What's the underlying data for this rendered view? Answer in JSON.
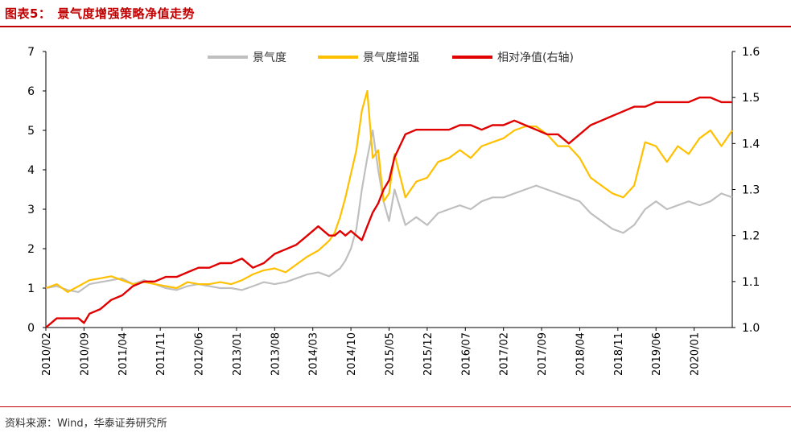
{
  "header": {
    "title": "图表5：　景气度增强策略净值走势"
  },
  "footer": {
    "source": "资料来源：Wind，华泰证券研究所"
  },
  "colors": {
    "accent": "#C00000",
    "series_gray": "#BFBFBF",
    "series_gold": "#FFC000",
    "series_red": "#E00000"
  },
  "chart_data": {
    "type": "line",
    "title": "景气度增强策略净值走势",
    "x_ticks": [
      "2010/02",
      "2010/09",
      "2011/04",
      "2011/11",
      "2012/06",
      "2013/01",
      "2013/08",
      "2014/03",
      "2014/10",
      "2015/05",
      "2015/12",
      "2016/07",
      "2017/02",
      "2017/09",
      "2018/04",
      "2018/11",
      "2019/06",
      "2020/01"
    ],
    "x_range": [
      "2010/02",
      "2020/06"
    ],
    "y_left": {
      "range": [
        0,
        7
      ],
      "ticks": [
        0,
        1,
        2,
        3,
        4,
        5,
        6,
        7
      ]
    },
    "y_right": {
      "range": [
        1.0,
        1.6
      ],
      "ticks": [
        "1.0",
        "1.1",
        "1.2",
        "1.3",
        "1.4",
        "1.5",
        "1.6"
      ]
    },
    "grid": false,
    "legend_position": "top",
    "series": [
      {
        "name": "景气度",
        "axis": "left",
        "color": "#BFBFBF",
        "x": [
          0,
          2,
          4,
          6,
          8,
          10,
          12,
          14,
          16,
          18,
          20,
          22,
          24,
          26,
          28,
          30,
          32,
          34,
          36,
          38,
          40,
          42,
          44,
          46,
          48,
          50,
          52,
          53,
          54,
          55,
          56,
          57,
          58,
          59,
          60,
          61,
          62,
          63,
          64,
          66,
          68,
          70,
          72,
          74,
          76,
          78,
          80,
          82,
          84,
          86,
          88,
          90,
          92,
          94,
          96,
          98,
          100,
          102,
          104,
          106,
          108,
          110,
          112,
          114,
          116,
          118,
          120,
          122,
          124,
          126
        ],
        "values": [
          1.0,
          1.05,
          0.95,
          0.9,
          1.1,
          1.15,
          1.2,
          1.25,
          1.1,
          1.2,
          1.1,
          1.0,
          0.95,
          1.05,
          1.1,
          1.05,
          1.0,
          1.0,
          0.95,
          1.05,
          1.15,
          1.1,
          1.15,
          1.25,
          1.35,
          1.4,
          1.3,
          1.4,
          1.5,
          1.7,
          2.0,
          2.5,
          3.5,
          4.3,
          5.0,
          4.0,
          3.2,
          2.7,
          3.5,
          2.6,
          2.8,
          2.6,
          2.9,
          3.0,
          3.1,
          3.0,
          3.2,
          3.3,
          3.3,
          3.4,
          3.5,
          3.6,
          3.5,
          3.4,
          3.3,
          3.2,
          2.9,
          2.7,
          2.5,
          2.4,
          2.6,
          3.0,
          3.2,
          3.0,
          3.1,
          3.2,
          3.1,
          3.2,
          3.4,
          3.3
        ]
      },
      {
        "name": "景气度增强",
        "axis": "left",
        "color": "#FFC000",
        "x": [
          0,
          2,
          4,
          6,
          8,
          10,
          12,
          14,
          16,
          18,
          20,
          22,
          24,
          26,
          28,
          30,
          32,
          34,
          36,
          38,
          40,
          42,
          44,
          46,
          48,
          50,
          52,
          53,
          54,
          55,
          56,
          57,
          58,
          59,
          60,
          61,
          62,
          63,
          64,
          66,
          68,
          70,
          72,
          74,
          76,
          78,
          80,
          82,
          84,
          86,
          88,
          90,
          92,
          94,
          96,
          98,
          100,
          102,
          104,
          106,
          108,
          110,
          112,
          114,
          116,
          118,
          120,
          122,
          124,
          126
        ],
        "values": [
          1.0,
          1.1,
          0.9,
          1.05,
          1.2,
          1.25,
          1.3,
          1.2,
          1.1,
          1.15,
          1.1,
          1.05,
          1.0,
          1.15,
          1.1,
          1.1,
          1.15,
          1.1,
          1.2,
          1.35,
          1.45,
          1.5,
          1.4,
          1.6,
          1.8,
          1.95,
          2.2,
          2.4,
          2.8,
          3.3,
          3.9,
          4.5,
          5.5,
          6.0,
          4.3,
          4.5,
          3.2,
          3.4,
          4.4,
          3.3,
          3.7,
          3.8,
          4.2,
          4.3,
          4.5,
          4.3,
          4.6,
          4.7,
          4.8,
          5.0,
          5.1,
          5.1,
          4.9,
          4.6,
          4.6,
          4.3,
          3.8,
          3.6,
          3.4,
          3.3,
          3.6,
          4.7,
          4.6,
          4.2,
          4.6,
          4.4,
          4.8,
          5.0,
          4.6,
          5.0
        ]
      },
      {
        "name": "相对净值(右轴)",
        "axis": "right",
        "color": "#E00000",
        "x": [
          0,
          2,
          4,
          6,
          7,
          8,
          10,
          12,
          14,
          16,
          18,
          20,
          22,
          24,
          26,
          28,
          30,
          32,
          34,
          36,
          38,
          40,
          42,
          44,
          46,
          48,
          50,
          52,
          53,
          54,
          55,
          56,
          57,
          58,
          59,
          60,
          61,
          62,
          63,
          64,
          66,
          68,
          70,
          72,
          74,
          76,
          78,
          80,
          82,
          84,
          86,
          88,
          90,
          92,
          94,
          96,
          98,
          100,
          102,
          104,
          106,
          108,
          110,
          112,
          114,
          116,
          118,
          120,
          122,
          124,
          126
        ],
        "values": [
          1.0,
          1.02,
          1.02,
          1.02,
          1.01,
          1.03,
          1.04,
          1.06,
          1.07,
          1.09,
          1.1,
          1.1,
          1.11,
          1.11,
          1.12,
          1.13,
          1.13,
          1.14,
          1.14,
          1.15,
          1.13,
          1.14,
          1.16,
          1.17,
          1.18,
          1.2,
          1.22,
          1.2,
          1.2,
          1.21,
          1.2,
          1.21,
          1.2,
          1.19,
          1.22,
          1.25,
          1.27,
          1.3,
          1.32,
          1.37,
          1.42,
          1.43,
          1.43,
          1.43,
          1.43,
          1.44,
          1.44,
          1.43,
          1.44,
          1.44,
          1.45,
          1.44,
          1.43,
          1.42,
          1.42,
          1.4,
          1.42,
          1.44,
          1.45,
          1.46,
          1.47,
          1.48,
          1.48,
          1.49,
          1.49,
          1.49,
          1.49,
          1.5,
          1.5,
          1.49,
          1.49
        ]
      }
    ]
  }
}
